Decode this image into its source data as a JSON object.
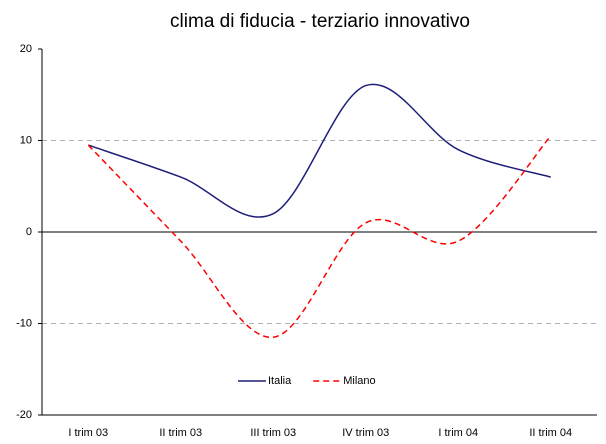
{
  "chart_data": {
    "type": "line",
    "title": "clima di fiducia - terziario innovativo",
    "categories": [
      "I trim 03",
      "II trim 03",
      "III trim 03",
      "IV trim 03",
      "I trim 04",
      "II trim 04"
    ],
    "series": [
      {
        "name": "Italia",
        "color": "#1f1f7a",
        "dashed": false,
        "values": [
          9.5,
          6,
          2,
          16,
          9,
          6
        ]
      },
      {
        "name": "Milano",
        "color": "#ff0000",
        "dashed": true,
        "values": [
          9.5,
          -1,
          -11.5,
          1,
          -1,
          10.5
        ]
      }
    ],
    "ylim": [
      -20,
      20
    ],
    "yticks": [
      -20,
      -10,
      0,
      10,
      20
    ],
    "grid": true,
    "smooth": true,
    "legend": "bottom"
  }
}
